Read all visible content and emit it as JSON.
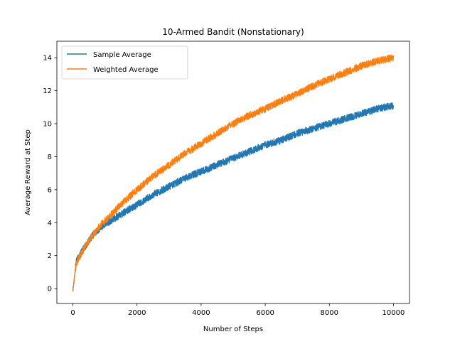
{
  "chart_data": {
    "type": "line",
    "title": "10-Armed Bandit (Nonstationary)",
    "xlabel": "Number of Steps",
    "ylabel": "Average Reward at Step",
    "xlim": [
      -500,
      10500
    ],
    "ylim": [
      -0.9,
      15.0
    ],
    "xticks": [
      0,
      2000,
      4000,
      6000,
      8000,
      10000
    ],
    "yticks": [
      0,
      2,
      4,
      6,
      8,
      10,
      12,
      14
    ],
    "grid": false,
    "legend_position": "upper-left",
    "x": [
      0,
      100,
      200,
      400,
      600,
      800,
      1000,
      1500,
      2000,
      2500,
      3000,
      3500,
      4000,
      4500,
      5000,
      5500,
      6000,
      6500,
      7000,
      7500,
      8000,
      8500,
      9000,
      9500,
      10000
    ],
    "series": [
      {
        "name": "Sample Average",
        "color": "#1f77b4",
        "noise": 0.22,
        "values": [
          -0.1,
          1.6,
          2.0,
          2.6,
          3.2,
          3.6,
          3.9,
          4.5,
          5.1,
          5.7,
          6.2,
          6.7,
          7.1,
          7.5,
          7.9,
          8.3,
          8.7,
          9.0,
          9.4,
          9.7,
          10.0,
          10.3,
          10.6,
          10.9,
          11.1
        ]
      },
      {
        "name": "Weighted Average",
        "color": "#ff7f0e",
        "noise": 0.22,
        "values": [
          -0.2,
          1.5,
          1.9,
          2.6,
          3.2,
          3.7,
          4.1,
          5.1,
          6.0,
          6.8,
          7.5,
          8.2,
          8.8,
          9.4,
          10.0,
          10.5,
          10.9,
          11.4,
          11.8,
          12.3,
          12.7,
          13.1,
          13.5,
          13.8,
          14.0
        ]
      }
    ]
  }
}
